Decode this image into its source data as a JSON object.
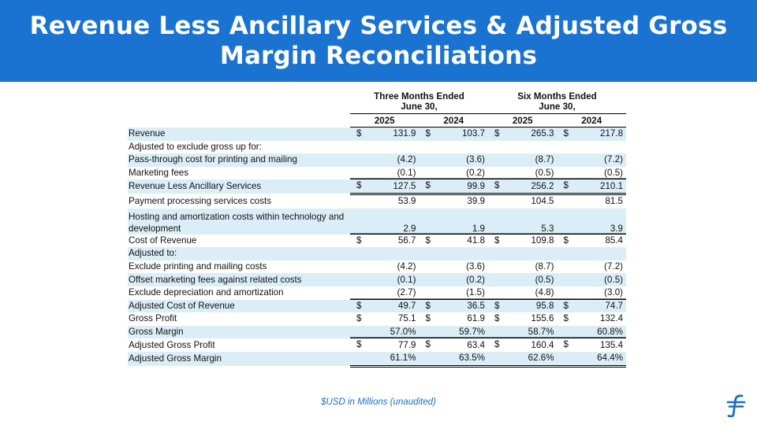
{
  "header": {
    "title": "Revenue Less Ancillary Services & Adjusted Gross Margin Reconciliations"
  },
  "table": {
    "periods": [
      {
        "line1": "Three Months Ended",
        "line2": "June 30,"
      },
      {
        "line1": "Six Months Ended",
        "line2": "June 30,"
      }
    ],
    "years": [
      "2025",
      "2024",
      "2025",
      "2024"
    ],
    "rows": [
      {
        "label": "Revenue",
        "dollar": true,
        "values": [
          "131.9",
          "103.7",
          "265.3",
          "217.8"
        ],
        "shaded": true,
        "line": "none"
      },
      {
        "label": "Adjusted to exclude gross up for:",
        "dollar": false,
        "values": [
          "",
          "",
          "",
          ""
        ],
        "shaded": false,
        "line": "none"
      },
      {
        "label": "Pass-through cost for printing and mailing",
        "dollar": false,
        "values": [
          "(4.2)",
          "(3.6)",
          "(8.7)",
          "(7.2)"
        ],
        "shaded": true,
        "line": "none"
      },
      {
        "label": "Marketing fees",
        "dollar": false,
        "values": [
          "(0.1)",
          "(0.2)",
          "(0.5)",
          "(0.5)"
        ],
        "shaded": false,
        "line": "under"
      },
      {
        "label": "Revenue Less Ancillary Services",
        "dollar": true,
        "values": [
          "127.5",
          "99.9",
          "256.2",
          "210.1"
        ],
        "shaded": true,
        "line": "double"
      },
      {
        "label": "Payment processing services costs",
        "dollar": false,
        "values": [
          "53.9",
          "39.9",
          "104.5",
          "81.5"
        ],
        "shaded": false,
        "line": "none"
      },
      {
        "label": "Hosting and amortization costs within technology and development",
        "dollar": false,
        "values": [
          "2.9",
          "1.9",
          "5.3",
          "3.9"
        ],
        "shaded": true,
        "line": "under",
        "tall": true
      },
      {
        "label": "Cost of Revenue",
        "dollar": true,
        "values": [
          "56.7",
          "41.8",
          "109.8",
          "85.4"
        ],
        "shaded": false,
        "line": "none"
      },
      {
        "label": "Adjusted to:",
        "dollar": false,
        "values": [
          "",
          "",
          "",
          ""
        ],
        "shaded": true,
        "line": "none"
      },
      {
        "label": "Exclude printing and mailing costs",
        "dollar": false,
        "values": [
          "(4.2)",
          "(3.6)",
          "(8.7)",
          "(7.2)"
        ],
        "shaded": false,
        "line": "none"
      },
      {
        "label": "Offset marketing fees against related costs",
        "dollar": false,
        "values": [
          "(0.1)",
          "(0.2)",
          "(0.5)",
          "(0.5)"
        ],
        "shaded": true,
        "line": "none"
      },
      {
        "label": "Exclude depreciation and amortization",
        "dollar": false,
        "values": [
          "(2.7)",
          "(1.5)",
          "(4.8)",
          "(3.0)"
        ],
        "shaded": false,
        "line": "under"
      },
      {
        "label": "Adjusted Cost of Revenue",
        "dollar": true,
        "values": [
          "49.7",
          "36.5",
          "95.8",
          "74.7"
        ],
        "shaded": true,
        "line": "none"
      },
      {
        "label": "Gross Profit",
        "dollar": true,
        "values": [
          "75.1",
          "61.9",
          "155.6",
          "132.4"
        ],
        "shaded": false,
        "line": "none"
      },
      {
        "label": "Gross Margin",
        "dollar": false,
        "values": [
          "57.0%",
          "59.7%",
          "58.7%",
          "60.8%"
        ],
        "shaded": true,
        "line": "under"
      },
      {
        "label": "Adjusted Gross Profit",
        "dollar": true,
        "values": [
          "77.9",
          "63.4",
          "160.4",
          "135.4"
        ],
        "shaded": false,
        "line": "none"
      },
      {
        "label": "Adjusted Gross Margin",
        "dollar": false,
        "values": [
          "61.1%",
          "63.5%",
          "62.6%",
          "64.4%"
        ],
        "shaded": true,
        "line": "double"
      }
    ],
    "currency_symbol": "$"
  },
  "footnote": "$USD in Millions (unaudited)",
  "logo": {
    "icon": "brand-f-icon",
    "color": "#1a6fc9"
  },
  "colors": {
    "header_bg": "#1a73d1",
    "row_shade": "#dbeef8"
  }
}
